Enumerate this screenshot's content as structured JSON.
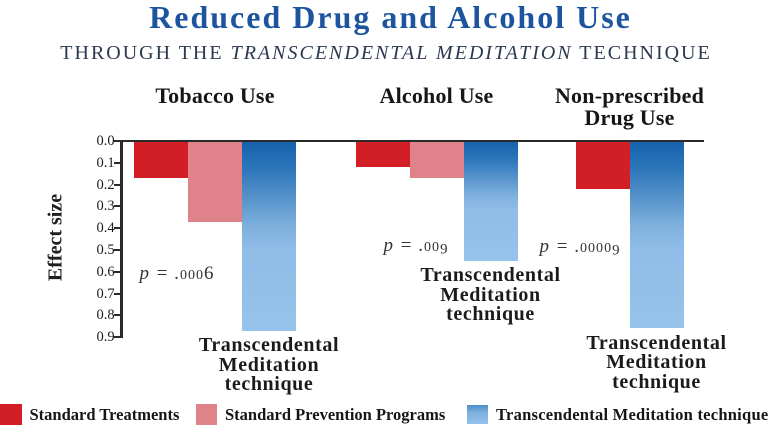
{
  "title": "Reduced Drug and Alcohol Use",
  "subtitle": {
    "prefix": "THROUGH THE ",
    "italic": "TRANSCENDENTAL MEDITATION",
    "suffix": " TECHNIQUE"
  },
  "ylabel": "Effect size",
  "colors": {
    "title_blue": "#1d549f",
    "standard_treatments_red": "#d21f26",
    "standard_prevention_pink": "#e08289",
    "tm_blue_top": "#1460aa",
    "tm_blue_bottom": "#a0cbf0",
    "axis_black": "#2a2a2a"
  },
  "chart_data": {
    "type": "bar",
    "orientation": "vertical-downward",
    "title": "Reduced Drug and Alcohol Use",
    "subtitle": "THROUGH THE TRANSCENDENTAL MEDITATION TECHNIQUE",
    "ylabel": "Effect size",
    "ylim": [
      0.0,
      0.9
    ],
    "yticks": [
      "0.0",
      "0.1",
      "0.2",
      "0.3",
      "0.4",
      "0.5",
      "0.6",
      "0.7",
      "0.8",
      "0.9"
    ],
    "grid": false,
    "legend_position": "bottom",
    "series_names": [
      "Standard Treatments",
      "Standard Prevention Programs",
      "Transcendental Meditation technique"
    ],
    "bar_annotation_lines": [
      "Transcendental",
      "Meditation",
      "technique"
    ],
    "groups": [
      {
        "label": "Tobacco Use",
        "label_lines": [
          "Tobacco Use"
        ],
        "p_value": "p = .0006",
        "bars": [
          {
            "series": "Standard Treatments",
            "value": 0.17
          },
          {
            "series": "Standard Prevention Programs",
            "value": 0.37
          },
          {
            "series": "Transcendental Meditation technique",
            "value": 0.87
          }
        ]
      },
      {
        "label": "Alcohol Use",
        "label_lines": [
          "Alcohol Use"
        ],
        "p_value": "p = .009",
        "bars": [
          {
            "series": "Standard Treatments",
            "value": 0.12
          },
          {
            "series": "Standard Prevention Programs",
            "value": 0.17
          },
          {
            "series": "Transcendental Meditation technique",
            "value": 0.55
          }
        ]
      },
      {
        "label": "Non-prescribed Drug Use",
        "label_lines": [
          "Non-prescribed",
          "Drug Use"
        ],
        "p_value": "p = .00009",
        "bars": [
          {
            "series": "Standard Treatments",
            "value": 0.22
          },
          {
            "series": "Transcendental Meditation technique",
            "value": 0.86
          }
        ]
      }
    ]
  },
  "legend": {
    "items": [
      {
        "label": "Standard Treatments",
        "color": "#d21f26"
      },
      {
        "label": "Standard Prevention Programs",
        "color": "#e08289"
      },
      {
        "label": "Transcendental Meditation technique",
        "color": "#1460aa"
      }
    ]
  }
}
